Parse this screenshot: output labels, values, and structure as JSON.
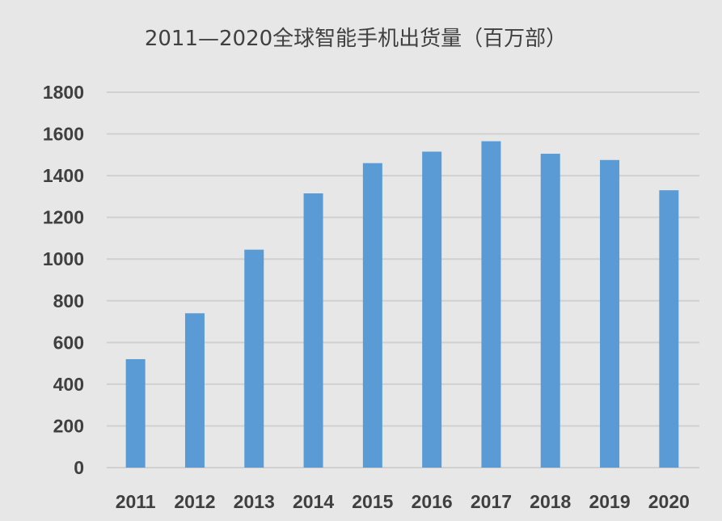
{
  "chart_data": {
    "type": "bar",
    "title": "2011—2020全球智能手机出货量（百万部）",
    "xlabel": "",
    "ylabel": "",
    "categories": [
      "2011",
      "2012",
      "2013",
      "2014",
      "2015",
      "2016",
      "2017",
      "2018",
      "2019",
      "2020"
    ],
    "values": [
      520,
      740,
      1045,
      1315,
      1460,
      1515,
      1565,
      1505,
      1475,
      1330
    ],
    "ylim": [
      0,
      1800
    ],
    "yticks": [
      "0",
      "200",
      "400",
      "600",
      "800",
      "1000",
      "1200",
      "1400",
      "1600",
      "1800"
    ],
    "grid": true,
    "legend": "none",
    "bar_color": "#5b9bd5",
    "background_color": "#e7e7e7"
  }
}
